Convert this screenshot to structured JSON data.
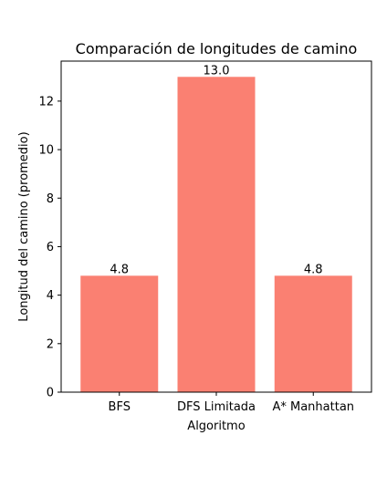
{
  "chart_data": {
    "type": "bar",
    "title": "Comparación de longitudes de camino",
    "xlabel": "Algoritmo",
    "ylabel": "Longitud del camino (promedio)",
    "categories": [
      "BFS",
      "DFS Limitada",
      "A* Manhattan"
    ],
    "values": [
      4.8,
      13.0,
      4.8
    ],
    "data_labels": [
      "4.8",
      "13.0",
      "4.8"
    ],
    "ylim": [
      0,
      13.65
    ],
    "yticks": [
      0,
      2,
      4,
      6,
      8,
      10,
      12
    ],
    "grid": false,
    "legend": "none",
    "bar_color": "#fa8072"
  }
}
